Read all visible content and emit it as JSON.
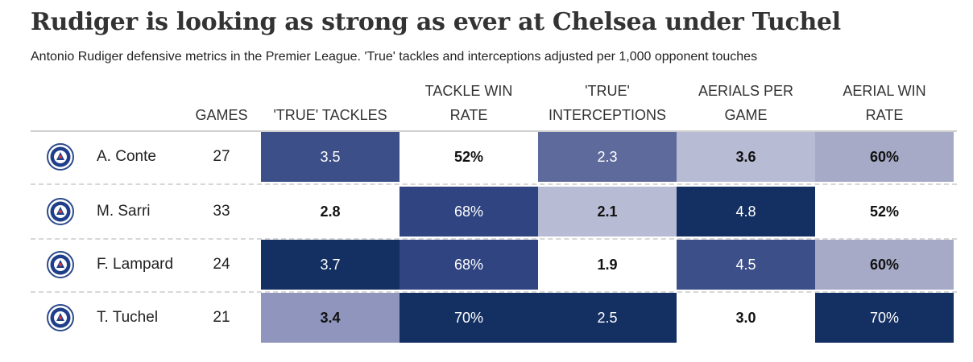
{
  "title": "Rudiger is looking as strong as ever at Chelsea under Tuchel",
  "subtitle": "Antonio Rudiger defensive metrics in the Premier League. 'True' tackles and interceptions adjusted per 1,000 opponent touches",
  "columns": {
    "games": "GAMES",
    "tackles": "'TRUE' TACKLES",
    "tackle_win_line1": "TACKLE WIN",
    "tackle_win_line2": "RATE",
    "interceptions_line1": "'TRUE'",
    "interceptions_line2": "INTERCEPTIONS",
    "aerials_line1": "AERIALS PER",
    "aerials_line2": "GAME",
    "aerial_win_line1": "AERIAL WIN",
    "aerial_win_line2": "RATE"
  },
  "colors": {
    "darkest": "#143063",
    "dark": "#2f4480",
    "mid": "#3d4f89",
    "medium": "#5e6a9b",
    "light": "#a6aac6",
    "lighter": "#b7bbd4",
    "white": "#ffffff"
  },
  "chart_data": {
    "type": "table",
    "columns": [
      "GAMES",
      "'TRUE' TACKLES",
      "TACKLE WIN RATE",
      "'TRUE' INTERCEPTIONS",
      "AERIALS PER GAME",
      "AERIAL WIN RATE"
    ],
    "rows": [
      {
        "manager": "A. Conte",
        "games": "27",
        "tackles": "3.5",
        "tackles_color": "#3d4f89",
        "tackle_win": "52%",
        "tackle_win_color": "#ffffff",
        "interceptions": "2.3",
        "interceptions_color": "#5e6a9b",
        "aerials": "3.6",
        "aerials_color": "#b7bbd4",
        "aerial_win": "60%",
        "aerial_win_color": "#a6aac6"
      },
      {
        "manager": "M. Sarri",
        "games": "33",
        "tackles": "2.8",
        "tackles_color": "#ffffff",
        "tackle_win": "68%",
        "tackle_win_color": "#2f4480",
        "interceptions": "2.1",
        "interceptions_color": "#b7bbd4",
        "aerials": "4.8",
        "aerials_color": "#143063",
        "aerial_win": "52%",
        "aerial_win_color": "#ffffff"
      },
      {
        "manager": "F. Lampard",
        "games": "24",
        "tackles": "3.7",
        "tackles_color": "#143063",
        "tackle_win": "68%",
        "tackle_win_color": "#2f4480",
        "interceptions": "1.9",
        "interceptions_color": "#ffffff",
        "aerials": "4.5",
        "aerials_color": "#3d4f89",
        "aerial_win": "60%",
        "aerial_win_color": "#a6aac6"
      },
      {
        "manager": "T. Tuchel",
        "games": "21",
        "tackles": "3.4",
        "tackles_color": "#8f95bd",
        "tackle_win": "70%",
        "tackle_win_color": "#143063",
        "interceptions": "2.5",
        "interceptions_color": "#143063",
        "aerials": "3.0",
        "aerials_color": "#ffffff",
        "aerial_win": "70%",
        "aerial_win_color": "#143063"
      }
    ]
  }
}
